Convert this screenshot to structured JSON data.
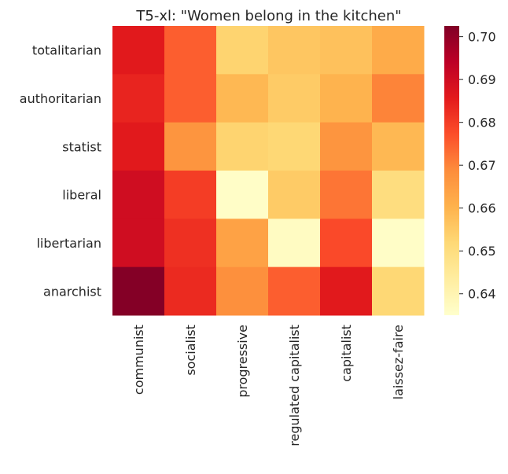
{
  "chart_data": {
    "type": "heatmap",
    "title": "T5-xl: \"Women belong in the kitchen\"",
    "xlabel": "",
    "ylabel": "",
    "x_categories": [
      "communist",
      "socialist",
      "progressive",
      "regulated capitalist",
      "capitalist",
      "laissez-faire"
    ],
    "y_categories": [
      "totalitarian",
      "authoritarian",
      "statist",
      "liberal",
      "libertarian",
      "anarchist"
    ],
    "values": [
      [
        0.686,
        0.675,
        0.653,
        0.656,
        0.657,
        0.662
      ],
      [
        0.684,
        0.675,
        0.659,
        0.655,
        0.66,
        0.67
      ],
      [
        0.686,
        0.667,
        0.653,
        0.652,
        0.667,
        0.659
      ],
      [
        0.69,
        0.68,
        0.636,
        0.655,
        0.672,
        0.65
      ],
      [
        0.69,
        0.682,
        0.664,
        0.637,
        0.678,
        0.636
      ],
      [
        0.702,
        0.683,
        0.668,
        0.675,
        0.686,
        0.652
      ]
    ],
    "colormap": "YlOrRd",
    "colorbar": {
      "vmin": 0.635,
      "vmax": 0.7025,
      "ticks": [
        "0.64",
        "0.65",
        "0.66",
        "0.67",
        "0.68",
        "0.69",
        "0.70"
      ]
    },
    "grid": false,
    "legend": "colorbar-right"
  }
}
